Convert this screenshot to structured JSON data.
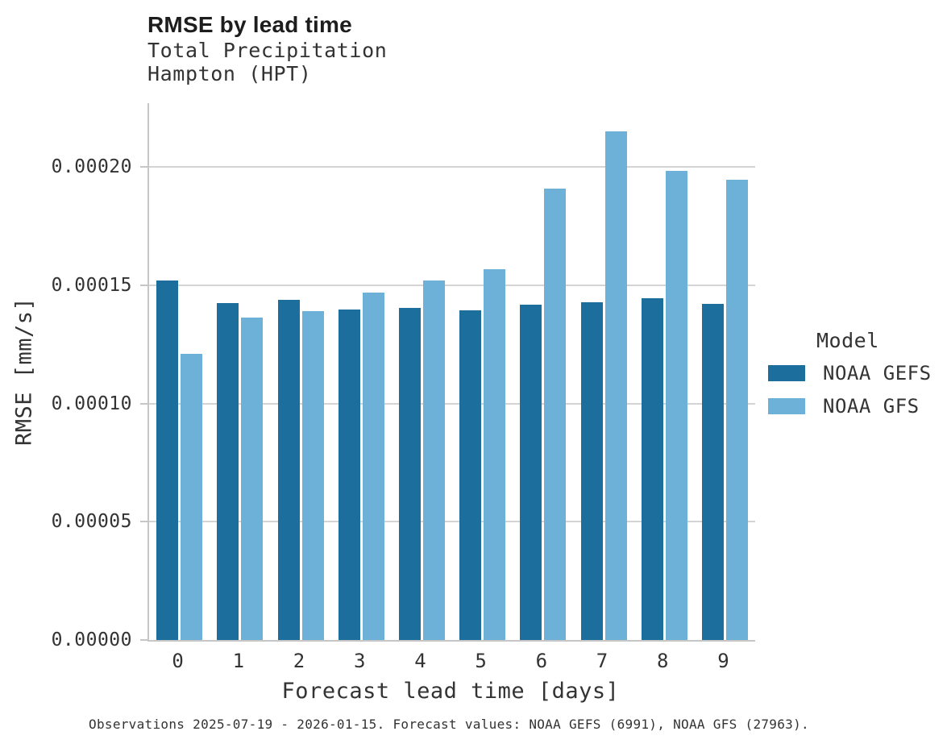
{
  "header": {
    "title": "RMSE by lead time",
    "subtitle_line1": "Total Precipitation",
    "subtitle_line2": "Hampton (HPT)"
  },
  "chart_data": {
    "type": "bar",
    "title": "RMSE by lead time",
    "subtitle": [
      "Total Precipitation",
      "Hampton (HPT)"
    ],
    "xlabel": "Forecast lead time [days]",
    "ylabel": "RMSE [mm/s]",
    "categories": [
      "0",
      "1",
      "2",
      "3",
      "4",
      "5",
      "6",
      "7",
      "8",
      "9"
    ],
    "series": [
      {
        "name": "NOAA GEFS",
        "color": "#1C6E9C",
        "values": [
          0.000152,
          0.0001424,
          0.0001438,
          0.0001397,
          0.0001405,
          0.0001394,
          0.0001417,
          0.0001428,
          0.0001445,
          0.0001421
        ]
      },
      {
        "name": "NOAA GFS",
        "color": "#6EB1D8",
        "values": [
          0.000121,
          0.0001363,
          0.000139,
          0.0001469,
          0.000152,
          0.0001567,
          0.000191,
          0.000215,
          0.0001983,
          0.0001946
        ]
      }
    ],
    "ylim": [
      0,
      0.000227
    ],
    "yticks": {
      "values": [
        0.0,
        5e-05,
        0.0001,
        0.00015,
        0.0002
      ],
      "labels": [
        "0.00000",
        "0.00005",
        "0.00010",
        "0.00015",
        "0.00020"
      ]
    },
    "grid": "horizontal",
    "legend_title": "Model",
    "legend_position": "right"
  },
  "legend": {
    "title": "Model",
    "items": [
      {
        "label": "NOAA GEFS",
        "color": "#1C6E9C"
      },
      {
        "label": "NOAA GFS",
        "color": "#6EB1D8"
      }
    ]
  },
  "caption": "Observations 2025-07-19 - 2026-01-15. Forecast values: NOAA GEFS (6991), NOAA GFS (27963)."
}
